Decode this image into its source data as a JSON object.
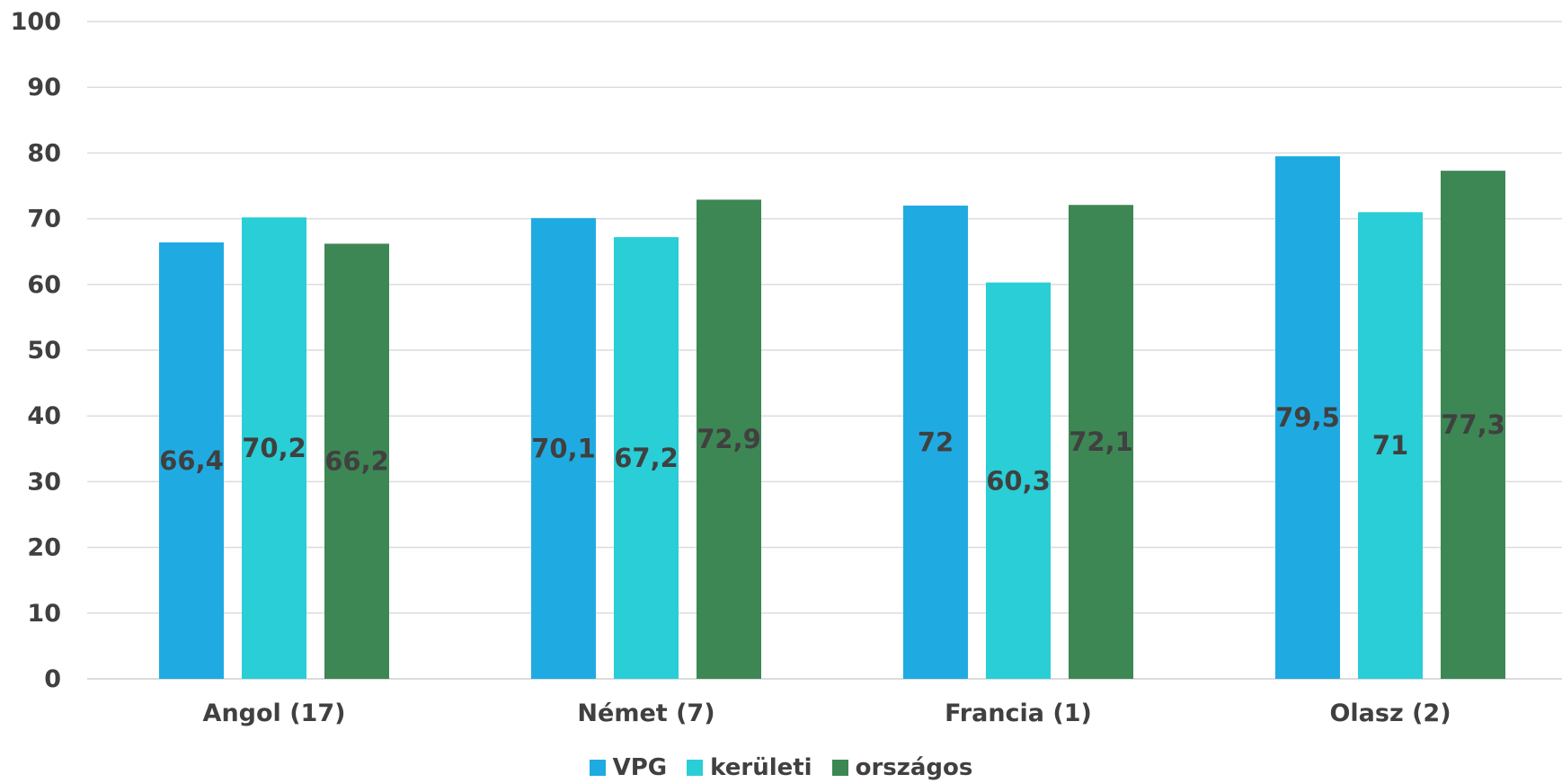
{
  "chart_data": {
    "type": "bar",
    "categories": [
      "Angol (17)",
      "Német (7)",
      "Francia (1)",
      "Olasz (2)"
    ],
    "series": [
      {
        "name": "VPG",
        "color": "#1fabe2",
        "values": [
          66.4,
          70.1,
          72,
          79.5
        ],
        "labels": [
          "66,4",
          "70,1",
          "72",
          "79,5"
        ]
      },
      {
        "name": "kerületi",
        "color": "#29ced6",
        "values": [
          70.2,
          67.2,
          60.3,
          71
        ],
        "labels": [
          "70,2",
          "67,2",
          "60,3",
          "71"
        ]
      },
      {
        "name": "országos",
        "color": "#3d8754",
        "values": [
          66.2,
          72.9,
          72.1,
          77.3
        ],
        "labels": [
          "66,2",
          "72,9",
          "72,1",
          "77,3"
        ]
      }
    ],
    "yticks": [
      "0",
      "10",
      "20",
      "30",
      "40",
      "50",
      "60",
      "70",
      "80",
      "90",
      "100"
    ],
    "ylim": [
      0,
      100
    ],
    "grid": true,
    "legend": "bottom"
  }
}
